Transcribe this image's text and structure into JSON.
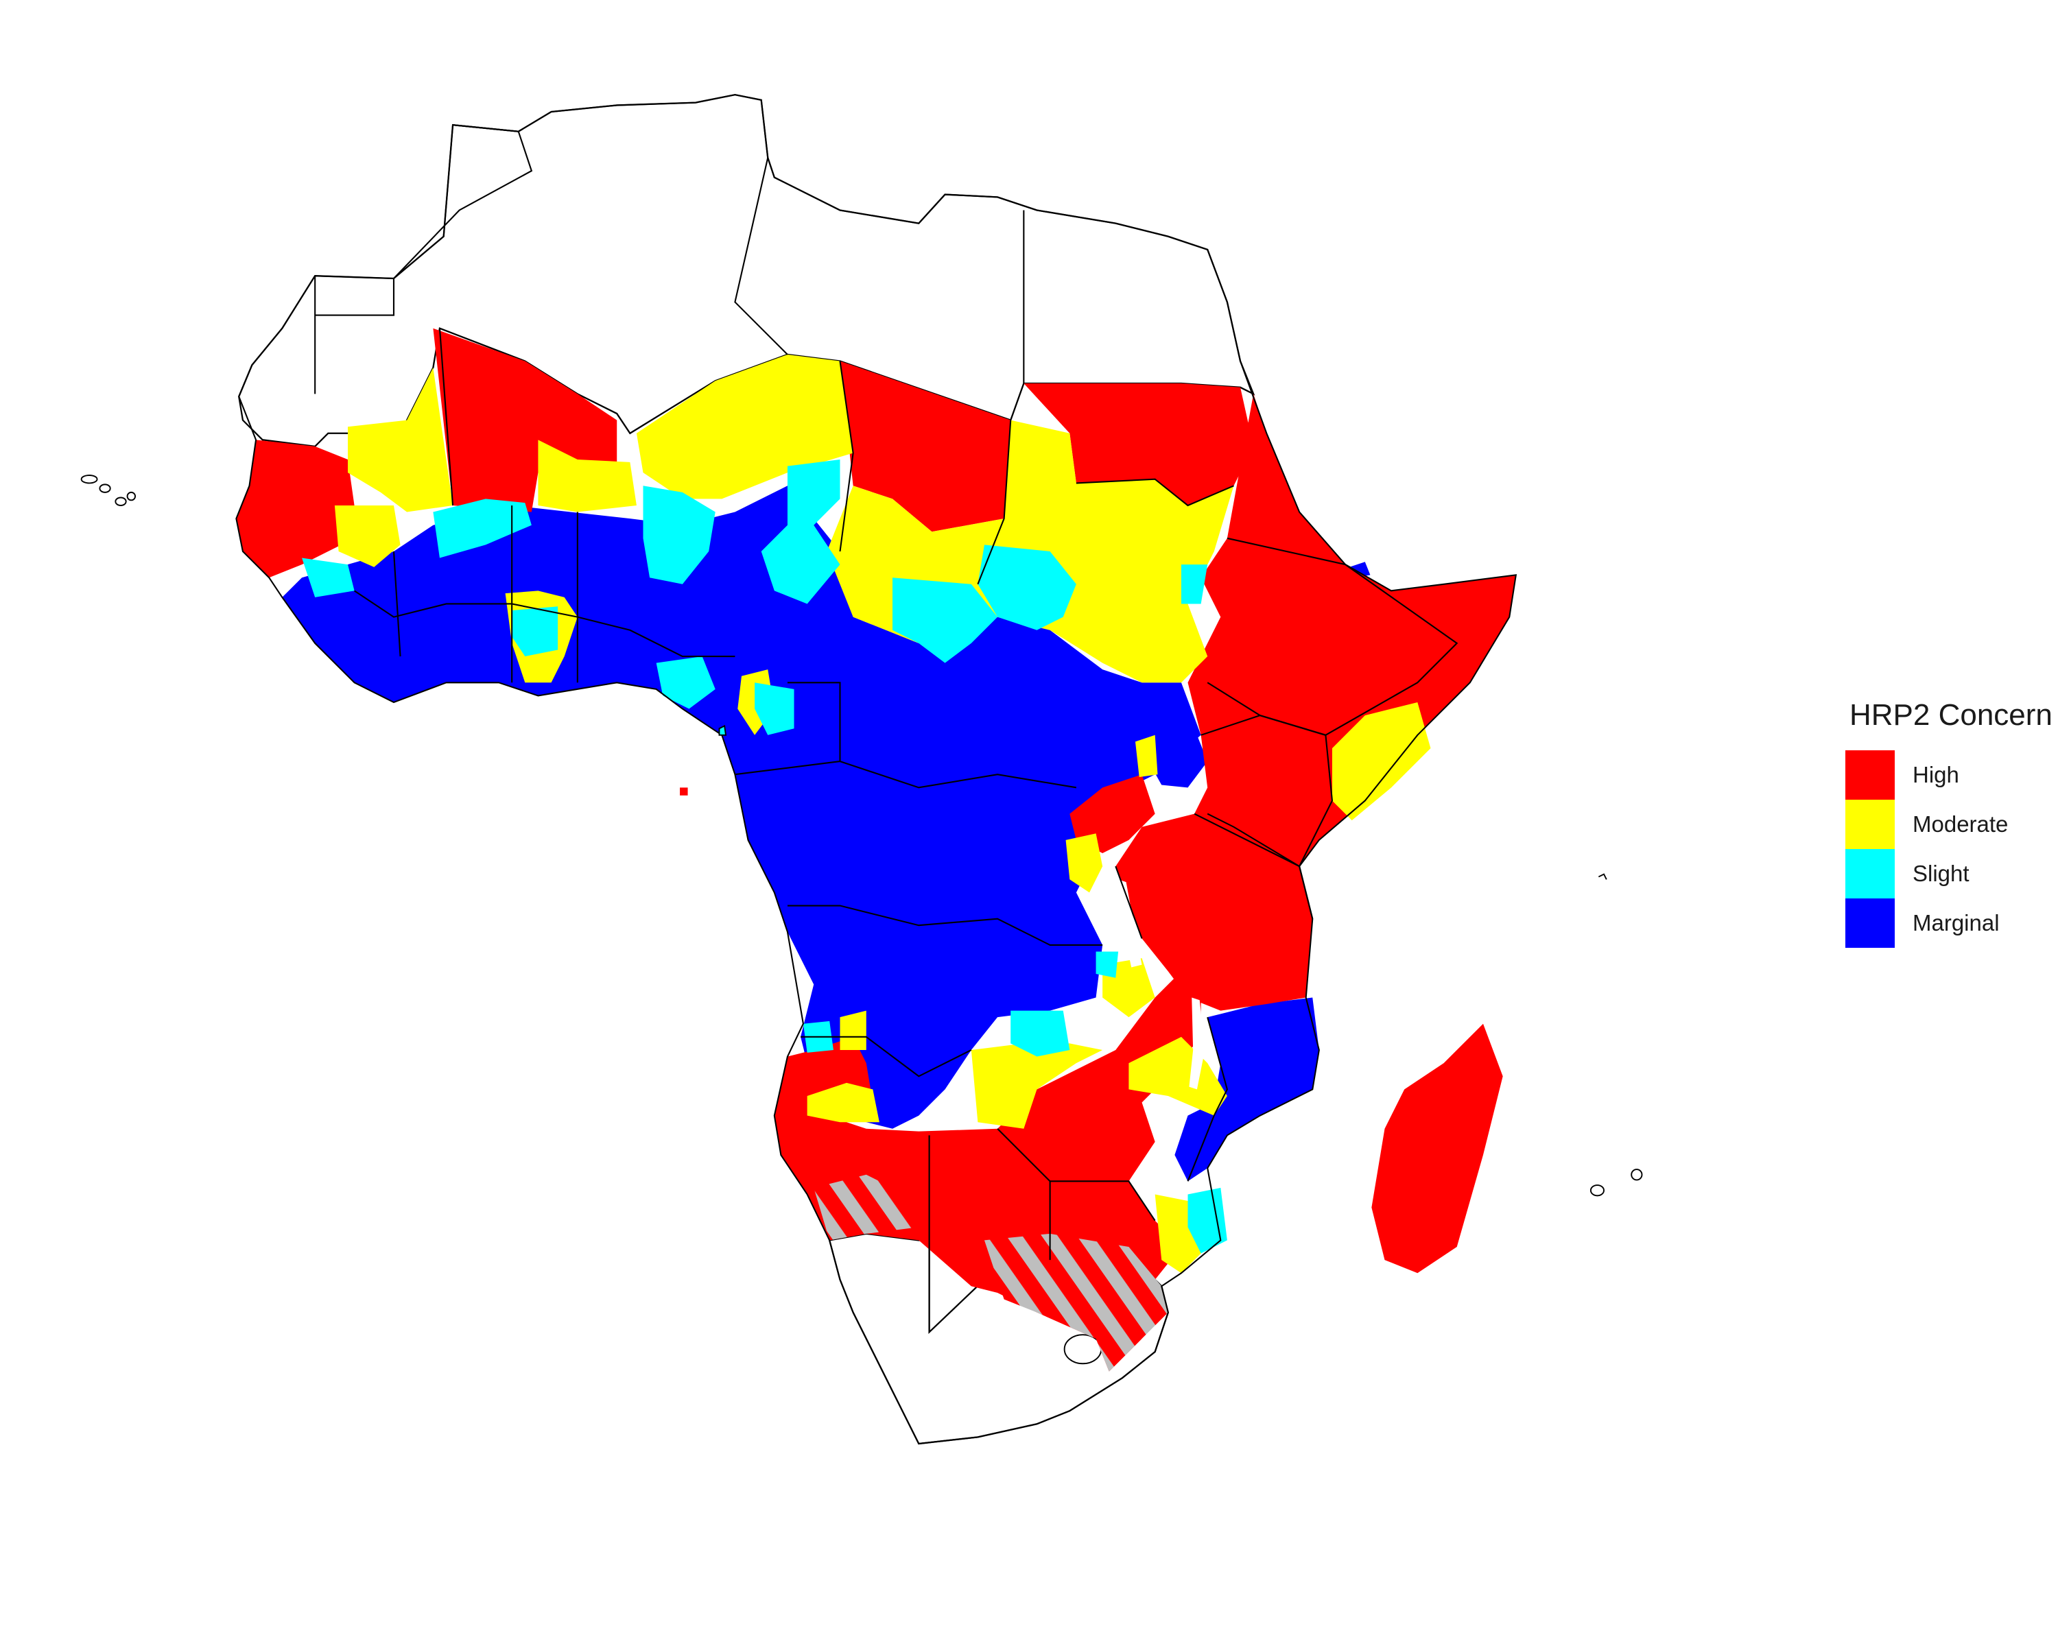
{
  "map": {
    "legend": {
      "title": "HRP2 Concern",
      "items": [
        {
          "label": "High",
          "color": "#ff0000"
        },
        {
          "label": "Moderate",
          "color": "#ffff00"
        },
        {
          "label": "Slight",
          "color": "#00ffff"
        },
        {
          "label": "Marginal",
          "color": "#0000ff"
        }
      ]
    },
    "no_data_color": "#ffffff",
    "hatch_color": "#bebebe",
    "border_color": "#000000",
    "admin_border_color": "#dddddd"
  }
}
